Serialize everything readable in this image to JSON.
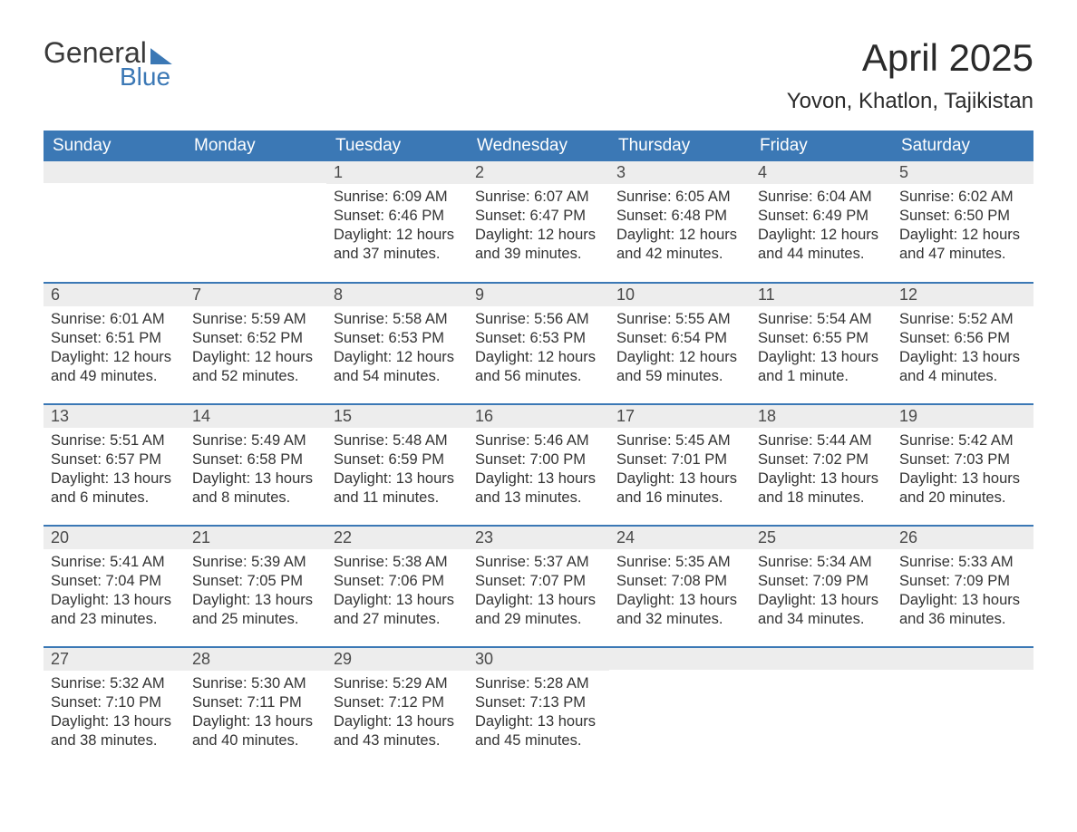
{
  "logo": {
    "general": "General",
    "blue": "Blue"
  },
  "header": {
    "month_title": "April 2025",
    "location": "Yovon, Khatlon, Tajikistan"
  },
  "colors": {
    "brand_blue": "#3b78b5",
    "header_text": "#ffffff",
    "daynum_bg": "#ededed",
    "body_text": "#333333",
    "page_bg": "#ffffff"
  },
  "calendar": {
    "weekdays": [
      "Sunday",
      "Monday",
      "Tuesday",
      "Wednesday",
      "Thursday",
      "Friday",
      "Saturday"
    ],
    "weeks": [
      [
        {
          "empty": true
        },
        {
          "empty": true
        },
        {
          "day": "1",
          "sunrise": "Sunrise: 6:09 AM",
          "sunset": "Sunset: 6:46 PM",
          "daylight1": "Daylight: 12 hours",
          "daylight2": "and 37 minutes."
        },
        {
          "day": "2",
          "sunrise": "Sunrise: 6:07 AM",
          "sunset": "Sunset: 6:47 PM",
          "daylight1": "Daylight: 12 hours",
          "daylight2": "and 39 minutes."
        },
        {
          "day": "3",
          "sunrise": "Sunrise: 6:05 AM",
          "sunset": "Sunset: 6:48 PM",
          "daylight1": "Daylight: 12 hours",
          "daylight2": "and 42 minutes."
        },
        {
          "day": "4",
          "sunrise": "Sunrise: 6:04 AM",
          "sunset": "Sunset: 6:49 PM",
          "daylight1": "Daylight: 12 hours",
          "daylight2": "and 44 minutes."
        },
        {
          "day": "5",
          "sunrise": "Sunrise: 6:02 AM",
          "sunset": "Sunset: 6:50 PM",
          "daylight1": "Daylight: 12 hours",
          "daylight2": "and 47 minutes."
        }
      ],
      [
        {
          "day": "6",
          "sunrise": "Sunrise: 6:01 AM",
          "sunset": "Sunset: 6:51 PM",
          "daylight1": "Daylight: 12 hours",
          "daylight2": "and 49 minutes."
        },
        {
          "day": "7",
          "sunrise": "Sunrise: 5:59 AM",
          "sunset": "Sunset: 6:52 PM",
          "daylight1": "Daylight: 12 hours",
          "daylight2": "and 52 minutes."
        },
        {
          "day": "8",
          "sunrise": "Sunrise: 5:58 AM",
          "sunset": "Sunset: 6:53 PM",
          "daylight1": "Daylight: 12 hours",
          "daylight2": "and 54 minutes."
        },
        {
          "day": "9",
          "sunrise": "Sunrise: 5:56 AM",
          "sunset": "Sunset: 6:53 PM",
          "daylight1": "Daylight: 12 hours",
          "daylight2": "and 56 minutes."
        },
        {
          "day": "10",
          "sunrise": "Sunrise: 5:55 AM",
          "sunset": "Sunset: 6:54 PM",
          "daylight1": "Daylight: 12 hours",
          "daylight2": "and 59 minutes."
        },
        {
          "day": "11",
          "sunrise": "Sunrise: 5:54 AM",
          "sunset": "Sunset: 6:55 PM",
          "daylight1": "Daylight: 13 hours",
          "daylight2": "and 1 minute."
        },
        {
          "day": "12",
          "sunrise": "Sunrise: 5:52 AM",
          "sunset": "Sunset: 6:56 PM",
          "daylight1": "Daylight: 13 hours",
          "daylight2": "and 4 minutes."
        }
      ],
      [
        {
          "day": "13",
          "sunrise": "Sunrise: 5:51 AM",
          "sunset": "Sunset: 6:57 PM",
          "daylight1": "Daylight: 13 hours",
          "daylight2": "and 6 minutes."
        },
        {
          "day": "14",
          "sunrise": "Sunrise: 5:49 AM",
          "sunset": "Sunset: 6:58 PM",
          "daylight1": "Daylight: 13 hours",
          "daylight2": "and 8 minutes."
        },
        {
          "day": "15",
          "sunrise": "Sunrise: 5:48 AM",
          "sunset": "Sunset: 6:59 PM",
          "daylight1": "Daylight: 13 hours",
          "daylight2": "and 11 minutes."
        },
        {
          "day": "16",
          "sunrise": "Sunrise: 5:46 AM",
          "sunset": "Sunset: 7:00 PM",
          "daylight1": "Daylight: 13 hours",
          "daylight2": "and 13 minutes."
        },
        {
          "day": "17",
          "sunrise": "Sunrise: 5:45 AM",
          "sunset": "Sunset: 7:01 PM",
          "daylight1": "Daylight: 13 hours",
          "daylight2": "and 16 minutes."
        },
        {
          "day": "18",
          "sunrise": "Sunrise: 5:44 AM",
          "sunset": "Sunset: 7:02 PM",
          "daylight1": "Daylight: 13 hours",
          "daylight2": "and 18 minutes."
        },
        {
          "day": "19",
          "sunrise": "Sunrise: 5:42 AM",
          "sunset": "Sunset: 7:03 PM",
          "daylight1": "Daylight: 13 hours",
          "daylight2": "and 20 minutes."
        }
      ],
      [
        {
          "day": "20",
          "sunrise": "Sunrise: 5:41 AM",
          "sunset": "Sunset: 7:04 PM",
          "daylight1": "Daylight: 13 hours",
          "daylight2": "and 23 minutes."
        },
        {
          "day": "21",
          "sunrise": "Sunrise: 5:39 AM",
          "sunset": "Sunset: 7:05 PM",
          "daylight1": "Daylight: 13 hours",
          "daylight2": "and 25 minutes."
        },
        {
          "day": "22",
          "sunrise": "Sunrise: 5:38 AM",
          "sunset": "Sunset: 7:06 PM",
          "daylight1": "Daylight: 13 hours",
          "daylight2": "and 27 minutes."
        },
        {
          "day": "23",
          "sunrise": "Sunrise: 5:37 AM",
          "sunset": "Sunset: 7:07 PM",
          "daylight1": "Daylight: 13 hours",
          "daylight2": "and 29 minutes."
        },
        {
          "day": "24",
          "sunrise": "Sunrise: 5:35 AM",
          "sunset": "Sunset: 7:08 PM",
          "daylight1": "Daylight: 13 hours",
          "daylight2": "and 32 minutes."
        },
        {
          "day": "25",
          "sunrise": "Sunrise: 5:34 AM",
          "sunset": "Sunset: 7:09 PM",
          "daylight1": "Daylight: 13 hours",
          "daylight2": "and 34 minutes."
        },
        {
          "day": "26",
          "sunrise": "Sunrise: 5:33 AM",
          "sunset": "Sunset: 7:09 PM",
          "daylight1": "Daylight: 13 hours",
          "daylight2": "and 36 minutes."
        }
      ],
      [
        {
          "day": "27",
          "sunrise": "Sunrise: 5:32 AM",
          "sunset": "Sunset: 7:10 PM",
          "daylight1": "Daylight: 13 hours",
          "daylight2": "and 38 minutes."
        },
        {
          "day": "28",
          "sunrise": "Sunrise: 5:30 AM",
          "sunset": "Sunset: 7:11 PM",
          "daylight1": "Daylight: 13 hours",
          "daylight2": "and 40 minutes."
        },
        {
          "day": "29",
          "sunrise": "Sunrise: 5:29 AM",
          "sunset": "Sunset: 7:12 PM",
          "daylight1": "Daylight: 13 hours",
          "daylight2": "and 43 minutes."
        },
        {
          "day": "30",
          "sunrise": "Sunrise: 5:28 AM",
          "sunset": "Sunset: 7:13 PM",
          "daylight1": "Daylight: 13 hours",
          "daylight2": "and 45 minutes."
        },
        {
          "empty": true
        },
        {
          "empty": true
        },
        {
          "empty": true
        }
      ]
    ]
  }
}
